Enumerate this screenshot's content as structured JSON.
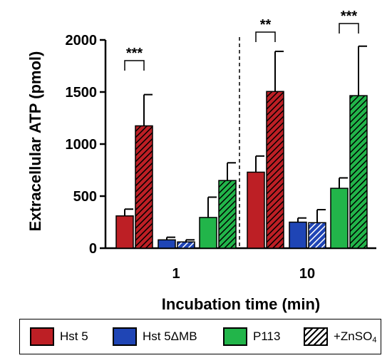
{
  "chart_data": {
    "type": "bar",
    "ylabel": "Extracellular ATP (pmol)",
    "xlabel": "Incubation time (min)",
    "ylim": [
      0,
      2000
    ],
    "yticks": [
      0,
      500,
      1000,
      1500,
      2000
    ],
    "groups": [
      "1",
      "10"
    ],
    "series": [
      {
        "name": "Hst 5",
        "color": "#bd1f25",
        "hatched": false,
        "values": [
          310,
          730
        ],
        "errors": [
          65,
          155
        ]
      },
      {
        "name": "Hst 5 +ZnSO4",
        "color": "#bd1f25",
        "hatched": true,
        "values": [
          1175,
          1505
        ],
        "errors": [
          300,
          385
        ]
      },
      {
        "name": "Hst 5ΔMB",
        "color": "#1f45b5",
        "hatched": false,
        "values": [
          80,
          250
        ],
        "errors": [
          25,
          40
        ]
      },
      {
        "name": "Hst 5ΔMB +ZnSO4",
        "color": "#1f45b5",
        "hatched": true,
        "values": [
          60,
          245
        ],
        "errors": [
          20,
          125
        ]
      },
      {
        "name": "P113",
        "color": "#22b54a",
        "hatched": false,
        "values": [
          295,
          575
        ],
        "errors": [
          195,
          100
        ]
      },
      {
        "name": "P113 +ZnSO4",
        "color": "#22b54a",
        "hatched": true,
        "values": [
          650,
          1465
        ],
        "errors": [
          170,
          475
        ]
      }
    ],
    "significance": [
      {
        "group": "1",
        "pair": "Hst 5",
        "label": "***"
      },
      {
        "group": "10",
        "pair": "Hst 5",
        "label": "**"
      },
      {
        "group": "10",
        "pair": "P113",
        "label": "***"
      }
    ],
    "divider": "dashed",
    "legend": {
      "position": "bottom",
      "items": [
        {
          "label": "Hst 5",
          "color": "#bd1f25",
          "hatched": false
        },
        {
          "label": "Hst 5ΔMB",
          "color": "#1f45b5",
          "hatched": false
        },
        {
          "label": "P113",
          "color": "#22b54a",
          "hatched": false
        },
        {
          "label": "+ZnSO",
          "subscript": "4",
          "color": "#ffffff",
          "hatched": true
        }
      ]
    }
  }
}
